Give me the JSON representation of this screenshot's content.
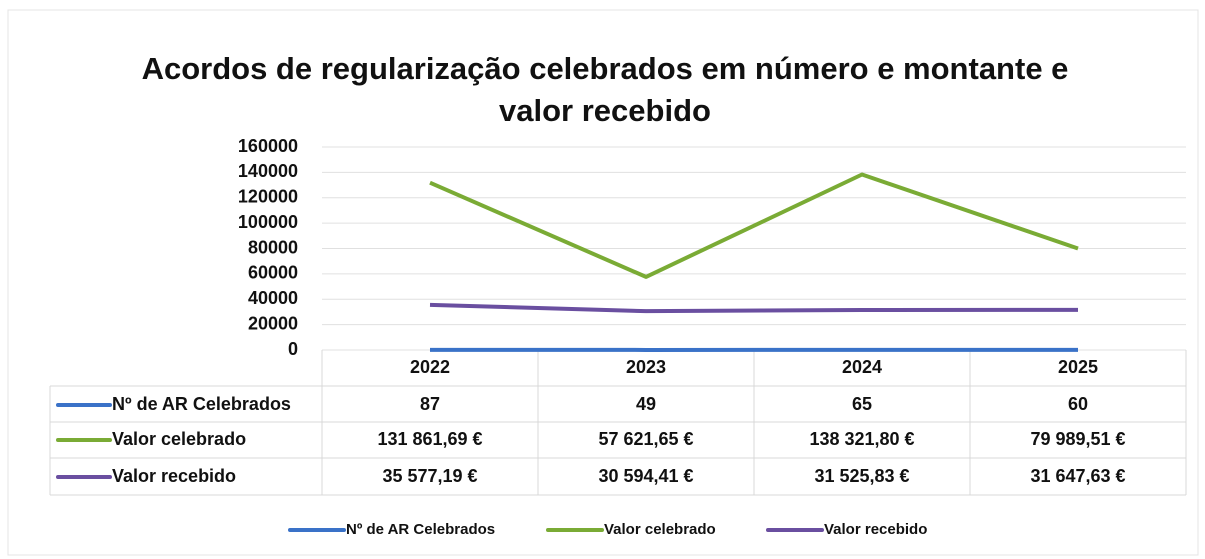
{
  "chart_data": {
    "type": "line",
    "title": "Acordos de regularização celebrados em número e montante e valor recebido",
    "categories": [
      "2022",
      "2023",
      "2024",
      "2025"
    ],
    "series": [
      {
        "name": "Nº de AR Celebrados",
        "color": "#3a72c8",
        "values": [
          87,
          49,
          65,
          60
        ]
      },
      {
        "name": "Valor celebrado",
        "color": "#7aab35",
        "values": [
          131861.69,
          57621.65,
          138321.8,
          79989.51
        ],
        "value_labels": [
          "131 861,69 €",
          "57 621,65 €",
          "138 321,80 €",
          "79 989,51 €"
        ]
      },
      {
        "name": "Valor recebido",
        "color": "#6a4fa0",
        "values": [
          35577.19,
          30594.41,
          31525.83,
          31647.63
        ],
        "value_labels": [
          "35 577,19 €",
          "30 594,41 €",
          "31 525,83 €",
          "31 647,63 €"
        ]
      }
    ],
    "ylim": [
      0,
      160000
    ],
    "yticks": [
      0,
      20000,
      40000,
      60000,
      80000,
      100000,
      120000,
      140000,
      160000
    ],
    "grid": true,
    "legend": "bottom"
  }
}
